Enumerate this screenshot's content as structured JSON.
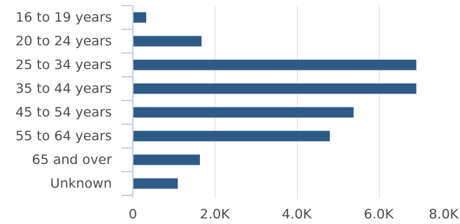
{
  "chart_data": {
    "type": "bar",
    "orientation": "horizontal",
    "categories": [
      "16 to 19 years",
      "20 to 24 years",
      "25 to 34 years",
      "35 to 44 years",
      "45 to 54 years",
      "55 to 64 years",
      "65 and over",
      "Unknown"
    ],
    "values": [
      310,
      1660,
      6900,
      6900,
      5370,
      4790,
      1620,
      1080
    ],
    "xlim": [
      0,
      8000
    ],
    "x_ticks": [
      0,
      2000,
      4000,
      6000,
      8000
    ],
    "x_tick_labels": [
      "0",
      "2.0K",
      "4.0K",
      "6.0K",
      "8.0K"
    ],
    "grid": "vertical",
    "legend": "none",
    "colors": {
      "bar": "#2e5a87",
      "grid": "#d9dde8",
      "axis": "#c9d0e6",
      "text": "#4d4d4d"
    }
  }
}
